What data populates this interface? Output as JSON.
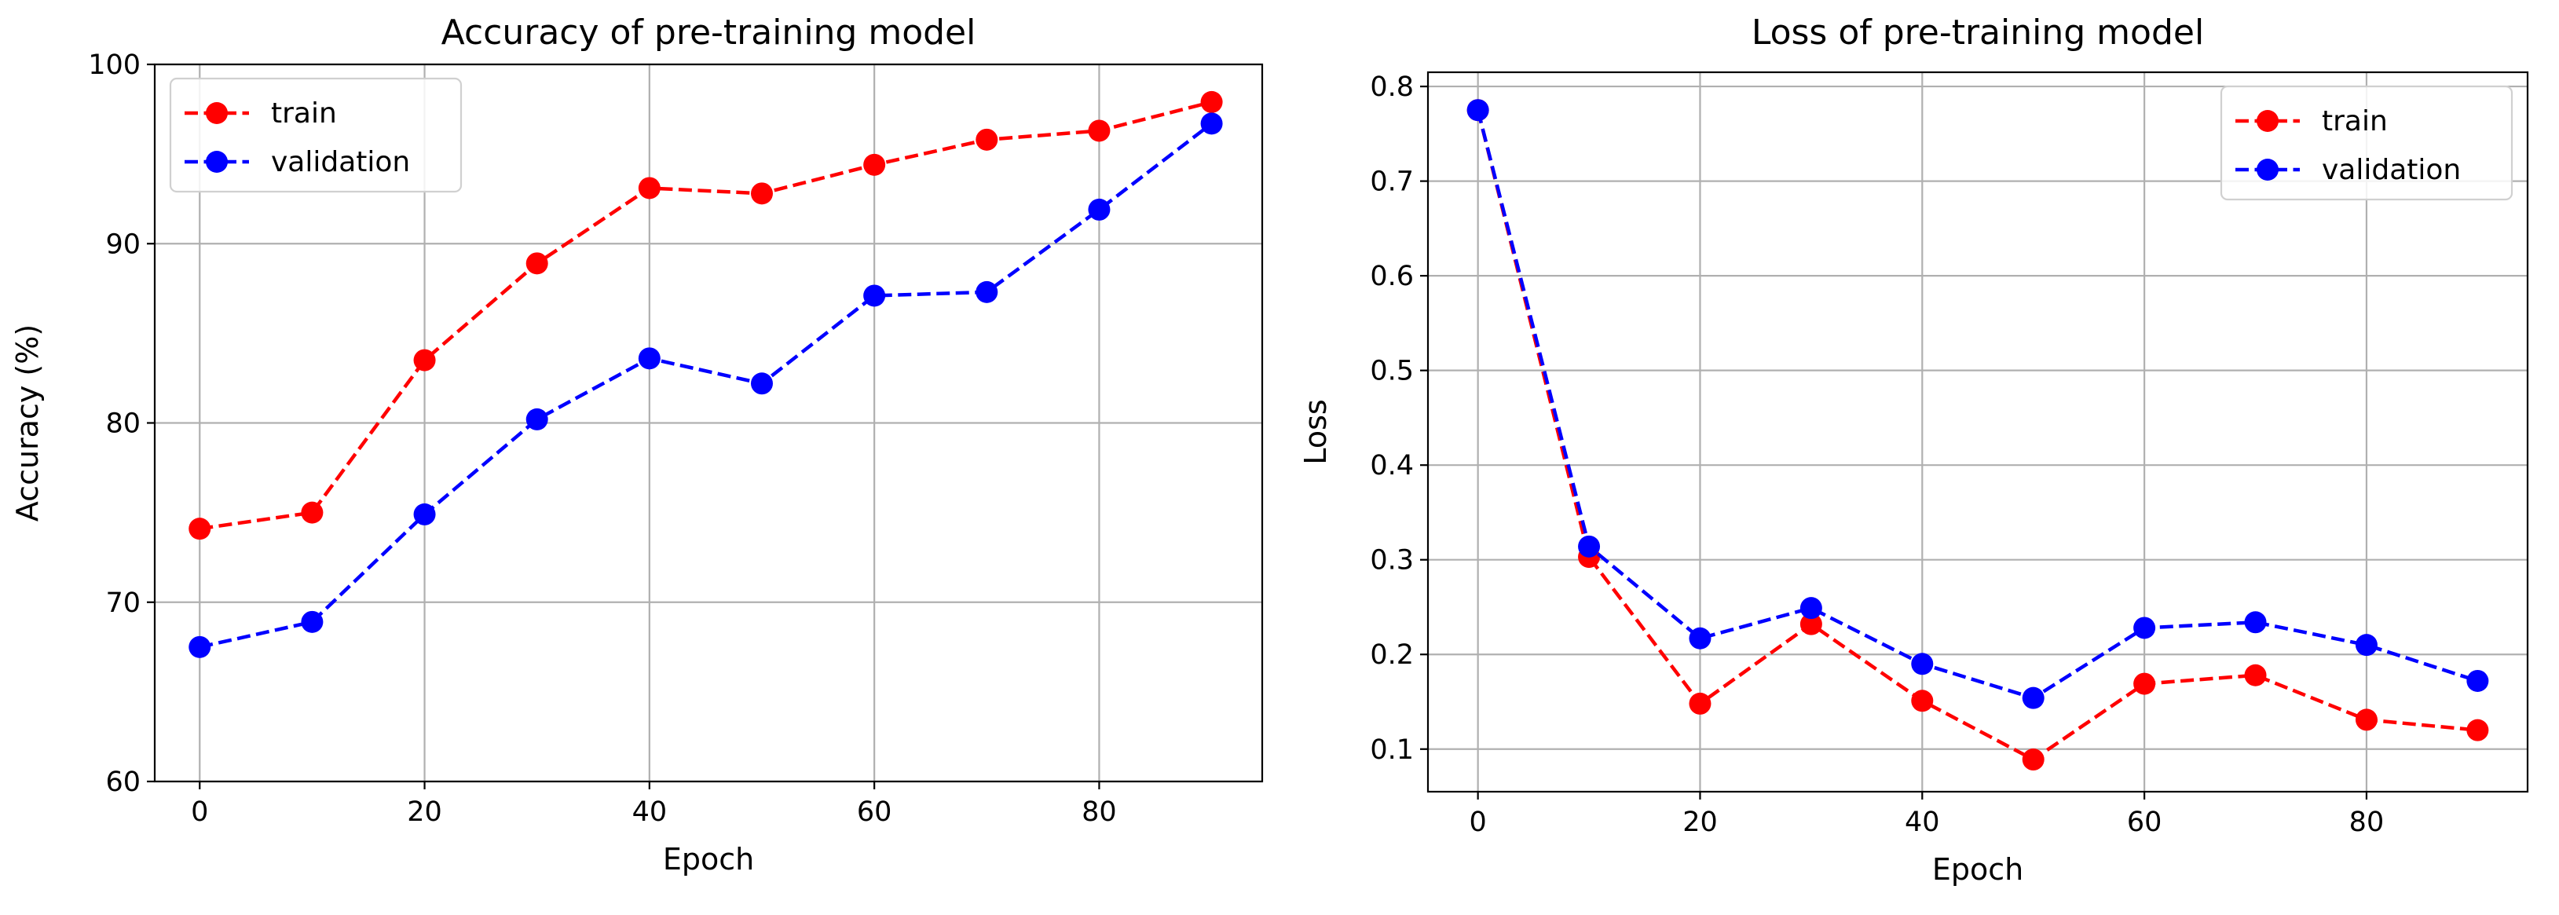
{
  "chart_data": [
    {
      "type": "line",
      "title": "Accuracy of pre-training model",
      "xlabel": "Epoch",
      "ylabel": "Accuracy (%)",
      "xlim": [
        -4,
        94.5
      ],
      "ylim": [
        60,
        100
      ],
      "xticks": [
        0,
        20,
        40,
        60,
        80
      ],
      "yticks": [
        60,
        70,
        80,
        90,
        100
      ],
      "grid": true,
      "legend_position": "upper left",
      "x": [
        0,
        10,
        20,
        30,
        40,
        50,
        60,
        70,
        80,
        90
      ],
      "series": [
        {
          "name": "train",
          "color": "#ff0000",
          "linestyle": "dashed",
          "marker": "circle",
          "values": [
            74.1,
            75.0,
            83.5,
            88.9,
            93.1,
            92.8,
            94.4,
            95.8,
            96.3,
            97.9
          ]
        },
        {
          "name": "validation",
          "color": "#0000ff",
          "linestyle": "dashed",
          "marker": "circle",
          "values": [
            67.5,
            68.9,
            74.9,
            80.2,
            83.6,
            82.2,
            87.1,
            87.3,
            91.9,
            96.7
          ]
        }
      ]
    },
    {
      "type": "line",
      "title": "Loss of pre-training model",
      "xlabel": "Epoch",
      "ylabel": "Loss",
      "xlim": [
        -4.5,
        94.5
      ],
      "ylim": [
        0.055,
        0.815
      ],
      "xticks": [
        0,
        20,
        40,
        60,
        80
      ],
      "yticks": [
        0.1,
        0.2,
        0.3,
        0.4,
        0.5,
        0.6,
        0.7,
        0.8
      ],
      "grid": true,
      "legend_position": "upper right",
      "x": [
        0,
        10,
        20,
        30,
        40,
        50,
        60,
        70,
        80,
        90
      ],
      "series": [
        {
          "name": "train",
          "color": "#ff0000",
          "linestyle": "dashed",
          "marker": "circle",
          "values": [
            0.775,
            0.303,
            0.148,
            0.232,
            0.151,
            0.089,
            0.169,
            0.178,
            0.131,
            0.12
          ]
        },
        {
          "name": "validation",
          "color": "#0000ff",
          "linestyle": "dashed",
          "marker": "circle",
          "values": [
            0.775,
            0.314,
            0.217,
            0.249,
            0.19,
            0.154,
            0.228,
            0.234,
            0.21,
            0.172
          ]
        }
      ]
    }
  ]
}
